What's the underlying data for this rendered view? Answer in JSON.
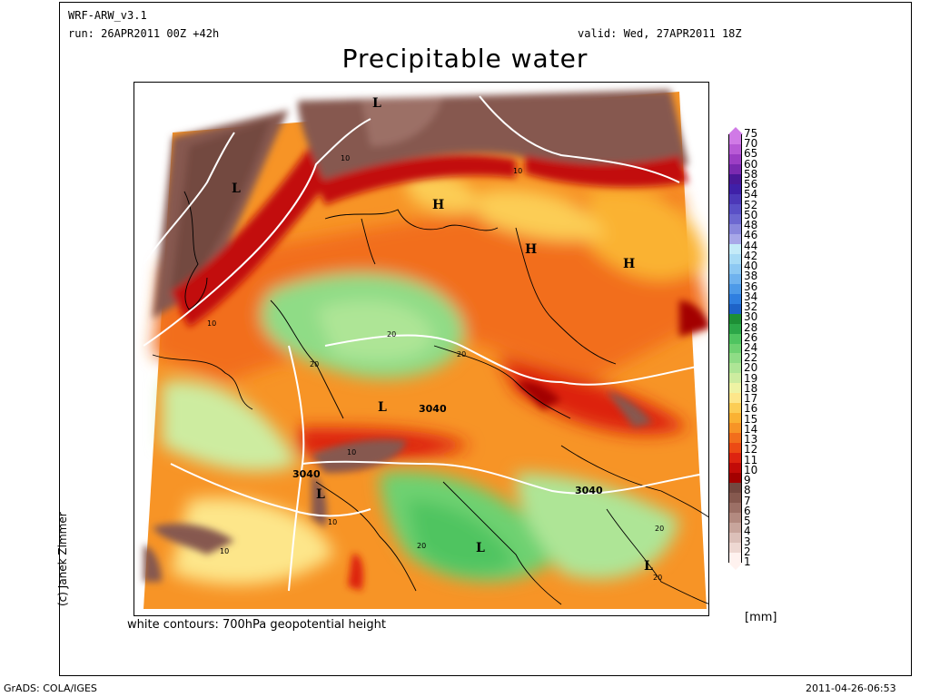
{
  "header": {
    "model": "WRF-ARW_v3.1",
    "run": "run: 26APR2011 00Z +42h",
    "valid": "valid: Wed, 27APR2011 18Z",
    "title": "Precipitable water"
  },
  "author": "(c) Janek Zimmer",
  "contour_note": "white contours: 700hPa geopotential height",
  "units": "[mm]",
  "footer": {
    "left": "GrADS: COLA/IGES",
    "right": "2011-04-26-06:53"
  },
  "legend": {
    "levels": [
      "1",
      "2",
      "3",
      "4",
      "5",
      "6",
      "7",
      "8",
      "9",
      "10",
      "11",
      "12",
      "13",
      "14",
      "15",
      "16",
      "17",
      "18",
      "19",
      "20",
      "22",
      "24",
      "26",
      "28",
      "30",
      "32",
      "34",
      "36",
      "38",
      "40",
      "42",
      "44",
      "46",
      "48",
      "50",
      "52",
      "54",
      "56",
      "58",
      "60",
      "65",
      "70",
      "75"
    ],
    "colors": [
      "#fff2ef",
      "#eed8d2",
      "#dcc0b9",
      "#c8a59c",
      "#b38a80",
      "#9c7066",
      "#86594f",
      "#734840",
      "#a30000",
      "#c20b08",
      "#dd2410",
      "#ec4a14",
      "#f26e1c",
      "#f79426",
      "#fab233",
      "#fccd55",
      "#fde68a",
      "#eef3a4",
      "#cdeca0",
      "#aee596",
      "#8fdc86",
      "#6ed171",
      "#4fc460",
      "#2ca748",
      "#1d8f35",
      "#1e63c8",
      "#2f7fe0",
      "#4d9ae8",
      "#6fb2ee",
      "#8dc8f2",
      "#a8dbf5",
      "#c4ebf8",
      "#a8a8e8",
      "#8a88dc",
      "#6d68d0",
      "#5a50c6",
      "#4c38b8",
      "#3f20a8",
      "#4a1898",
      "#7a2ab0",
      "#9c3ec4",
      "#b85ad6",
      "#d07ae6"
    ]
  },
  "map_labels": {
    "pressure": [
      {
        "letter": "L"
      },
      {
        "letter": "L"
      },
      {
        "letter": "H"
      },
      {
        "letter": "H"
      },
      {
        "letter": "H"
      },
      {
        "letter": "L"
      },
      {
        "letter": "L"
      },
      {
        "letter": "L"
      },
      {
        "letter": "L"
      }
    ],
    "contour_values": [
      "10",
      "10",
      "10",
      "10",
      "10",
      "10",
      "20",
      "20",
      "20",
      "20",
      "20",
      "20",
      "3040",
      "3040",
      "3040"
    ]
  }
}
